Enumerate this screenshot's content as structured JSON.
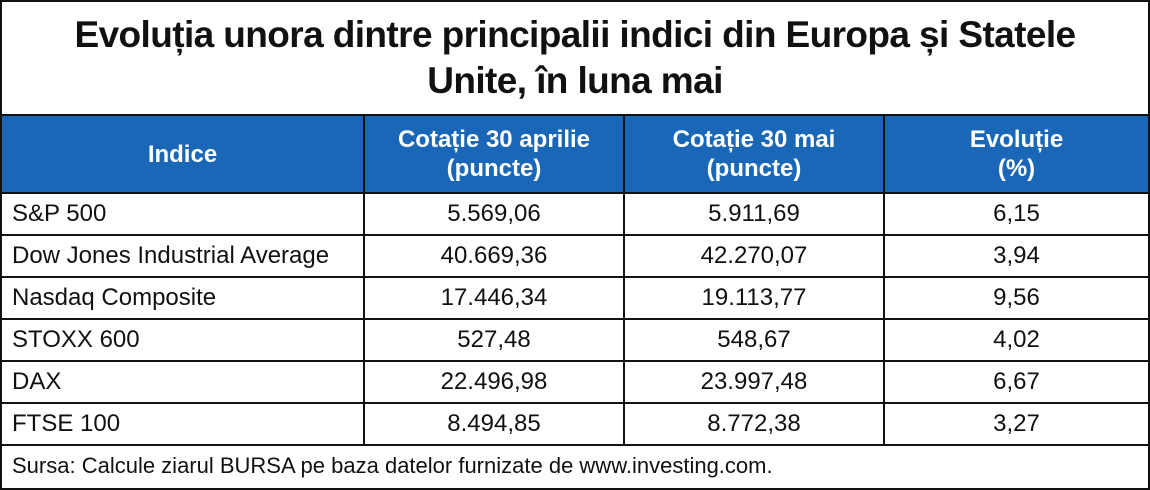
{
  "title": "Evoluția unora dintre principalii indici din Europa și Statele Unite, în luna mai",
  "colors": {
    "header_background": "#1a67b8",
    "header_text": "#ffffff",
    "border": "#111111"
  },
  "chart_data": {
    "type": "table",
    "title": "Evoluția unora dintre principalii indici din Europa și Statele Unite, în luna mai",
    "columns": [
      {
        "line1": "Indice",
        "line2": ""
      },
      {
        "line1": "Cotație 30 aprilie",
        "line2": "(puncte)"
      },
      {
        "line1": "Cotație 30 mai",
        "line2": "(puncte)"
      },
      {
        "line1": "Evoluție",
        "line2": "(%)"
      }
    ],
    "rows": [
      [
        "S&P 500",
        "5.569,06",
        "5.911,69",
        "6,15"
      ],
      [
        "Dow Jones Industrial Average",
        "40.669,36",
        "42.270,07",
        "3,94"
      ],
      [
        "Nasdaq Composite",
        "17.446,34",
        "19.113,77",
        "9,56"
      ],
      [
        "STOXX 600",
        "527,48",
        "548,67",
        "4,02"
      ],
      [
        "DAX",
        "22.496,98",
        "23.997,48",
        "6,67"
      ],
      [
        "FTSE 100",
        "8.494,85",
        "8.772,38",
        "3,27"
      ]
    ],
    "source": "Sursa: Calcule ziarul BURSA pe baza datelor furnizate de www.investing.com."
  }
}
